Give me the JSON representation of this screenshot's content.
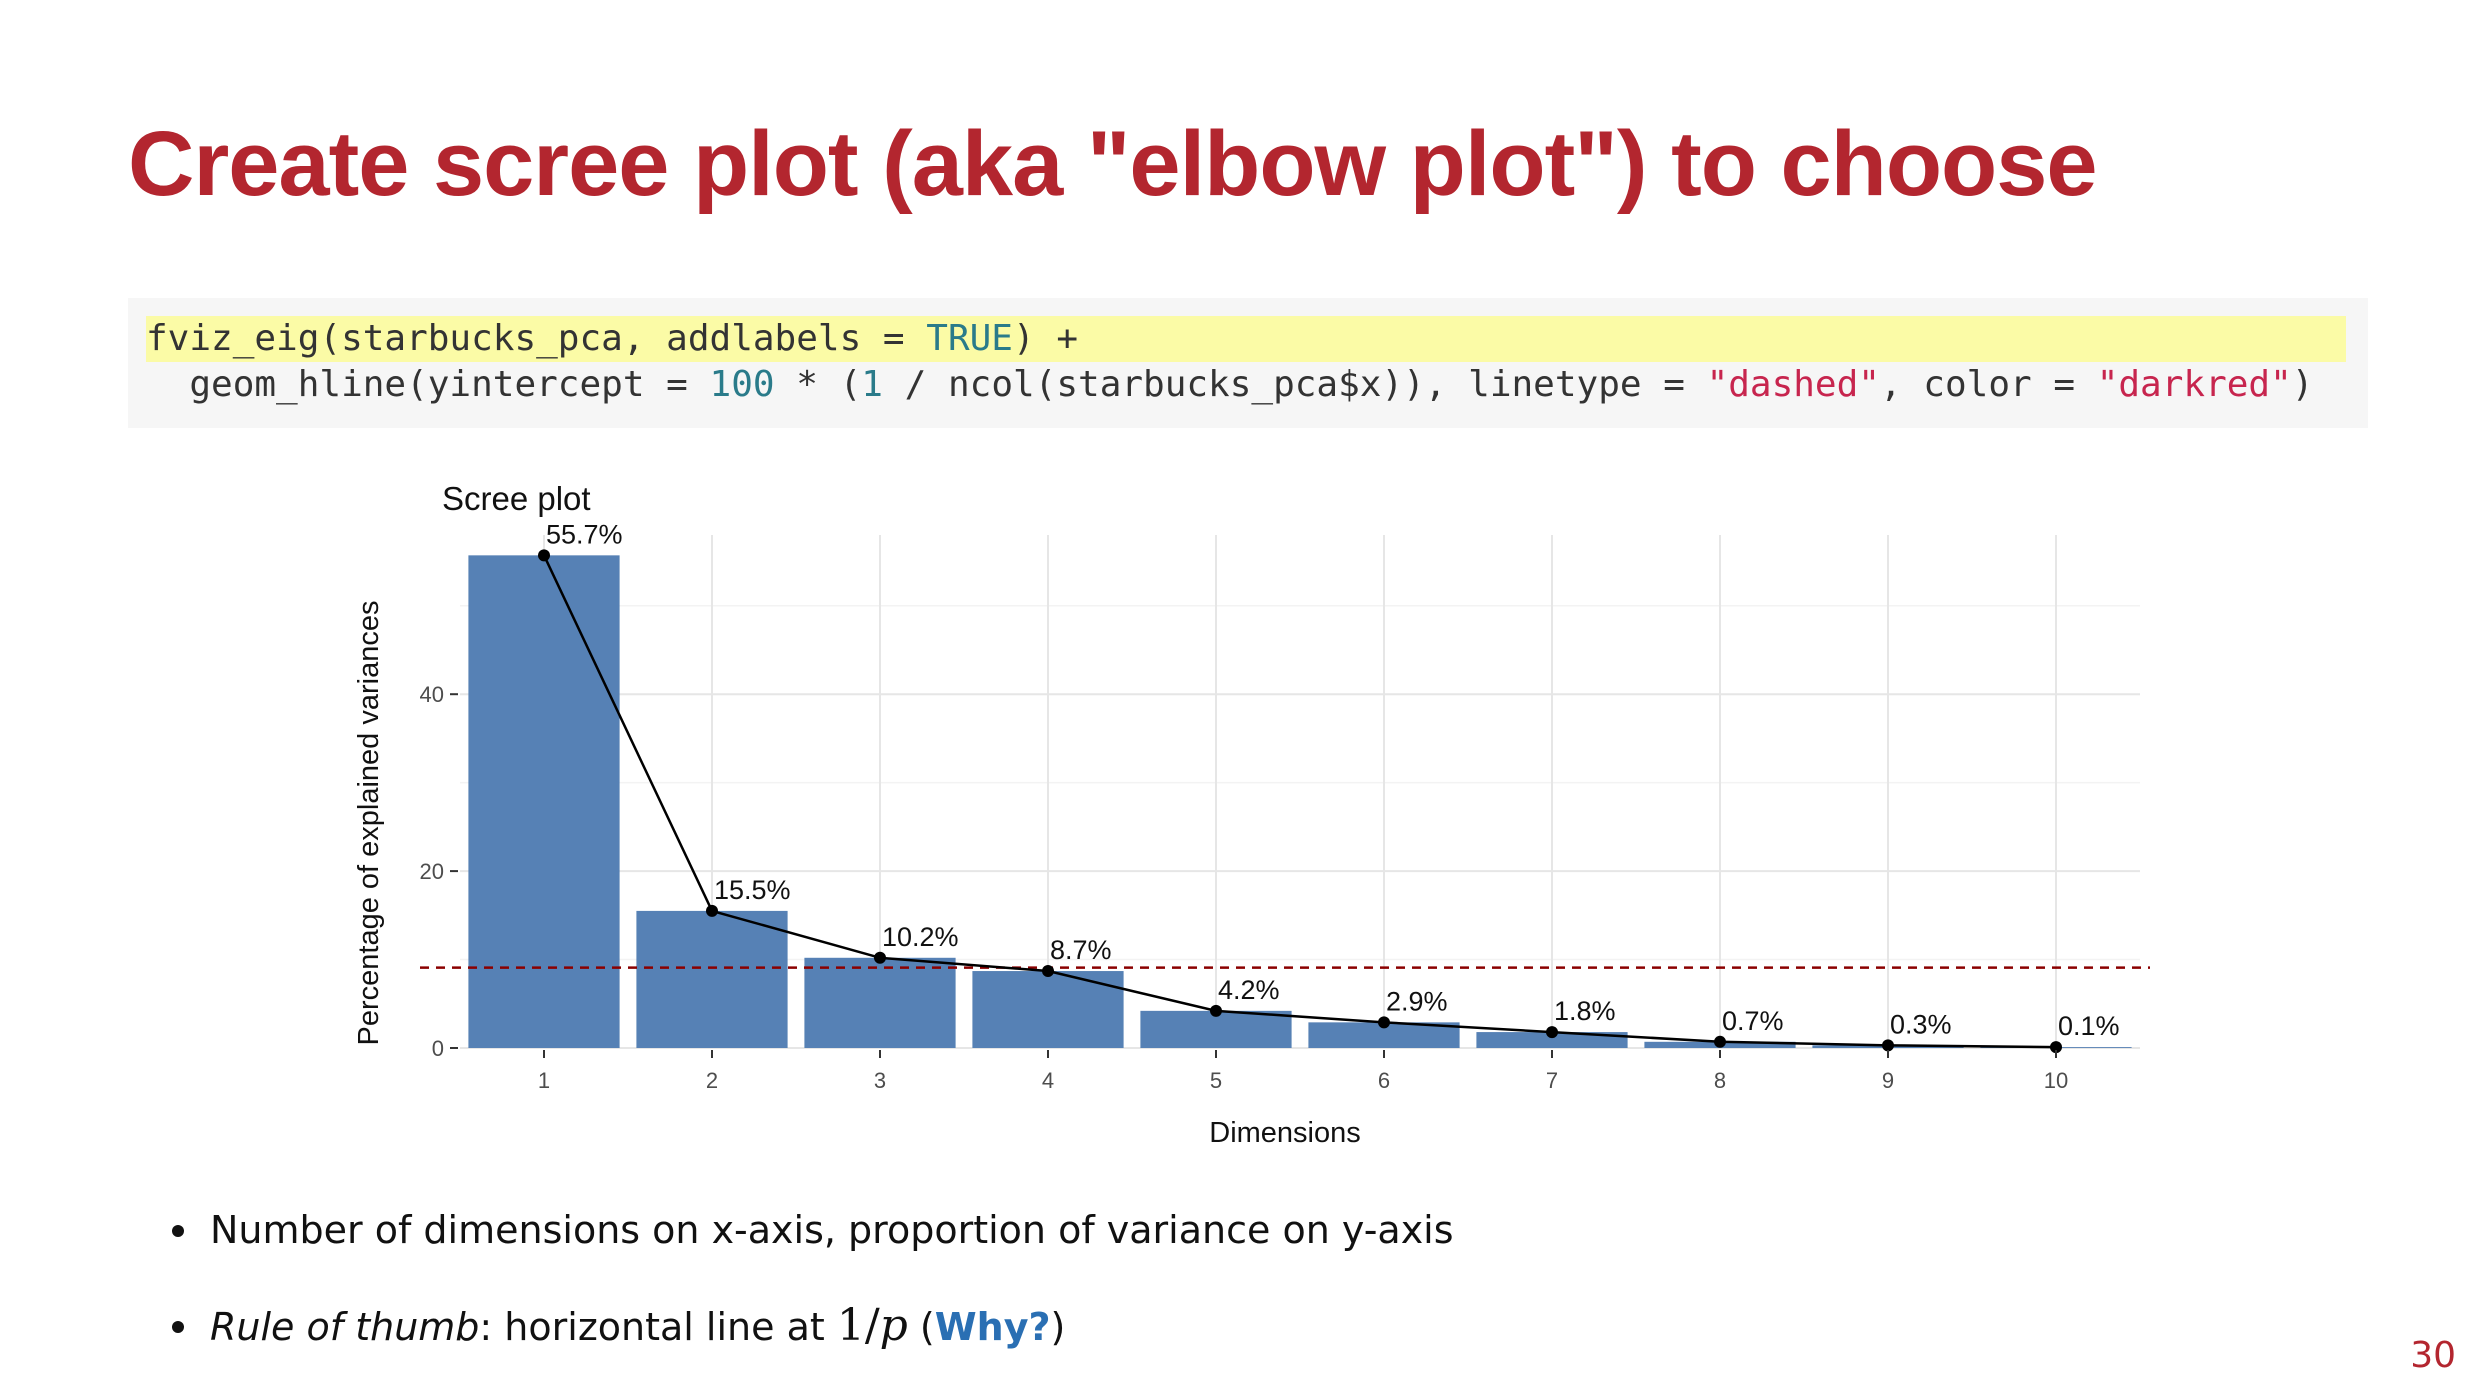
{
  "slide": {
    "title": "Create scree plot (aka \"elbow plot\") to choose",
    "page_number": "30"
  },
  "code": {
    "line1": {
      "p1": "fviz_eig(starbucks_pca, addlabels = ",
      "c1": "TRUE",
      "p2": ") +"
    },
    "line2": {
      "p1": "  geom_hline(yintercept = ",
      "n1": "100",
      "p2": " * (",
      "n2": "1",
      "p3": " / ncol(starbucks_pca$x)), linetype = ",
      "s1": "\"dashed\"",
      "p4": ", color = ",
      "s2": "\"darkred\"",
      "p5": ")"
    }
  },
  "bullets": {
    "item1": "Number of dimensions on x-axis, proportion of variance on y-axis",
    "item2_em": "Rule of thumb",
    "item2_text": ": horizontal line at ",
    "item2_math_num": "1",
    "item2_math_slash": "/",
    "item2_math_var": "p",
    "item2_open": " (",
    "item2_link": "Why?",
    "item2_close": ")"
  },
  "chart_data": {
    "type": "bar",
    "title": "Scree plot",
    "xlabel": "Dimensions",
    "ylabel": "Percentage of explained variances",
    "categories": [
      "1",
      "2",
      "3",
      "4",
      "5",
      "6",
      "7",
      "8",
      "9",
      "10"
    ],
    "values": [
      55.7,
      15.5,
      10.2,
      8.7,
      4.2,
      2.9,
      1.8,
      0.7,
      0.3,
      0.1
    ],
    "data_labels": [
      "55.7%",
      "15.5%",
      "10.2%",
      "8.7%",
      "4.2%",
      "2.9%",
      "1.8%",
      "0.7%",
      "0.3%",
      "0.1%"
    ],
    "yticks": [
      0,
      20,
      40
    ],
    "ylim": [
      0,
      58
    ],
    "bar_color": "#5681b5",
    "line_color": "#000000",
    "reference_line": {
      "value": 9.09,
      "style": "dashed",
      "color": "#8b0000"
    },
    "grid": true
  }
}
